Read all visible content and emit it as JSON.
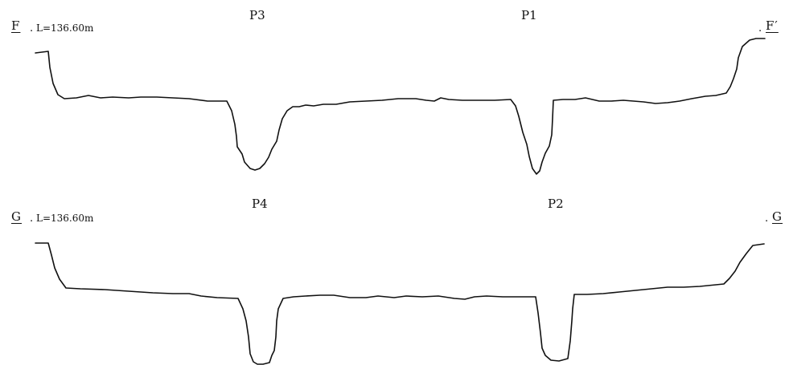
{
  "sections": [
    {
      "id": "F",
      "left_label": "F",
      "right_label": "F′",
      "length_label": "L=136.60m",
      "pits": [
        "P3",
        "P1"
      ]
    },
    {
      "id": "G",
      "left_label": "G",
      "right_label": "G",
      "length_label": "L=136.60m",
      "pits": [
        "P4",
        "P2"
      ]
    }
  ],
  "colors": {
    "line": "#111111",
    "background": "#ffffff"
  }
}
